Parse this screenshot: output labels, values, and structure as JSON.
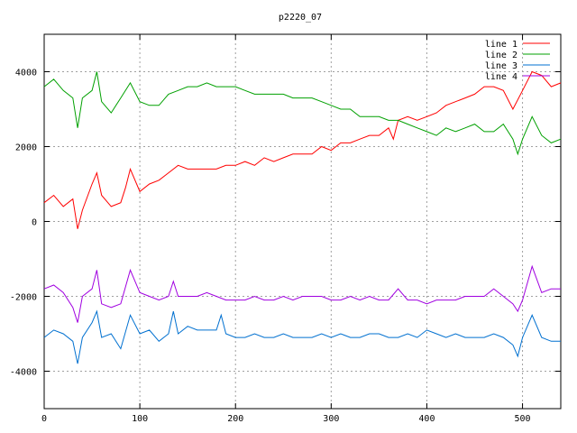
{
  "chart_data": {
    "type": "line",
    "title": "p2220_07",
    "xlabel": "",
    "ylabel": "",
    "xlim": [
      0,
      540
    ],
    "ylim": [
      -5000,
      5000
    ],
    "xticks": [
      0,
      100,
      200,
      300,
      400,
      500
    ],
    "yticks": [
      -4000,
      -2000,
      0,
      2000,
      4000
    ],
    "grid": true,
    "legend_position": "top-right",
    "series": [
      {
        "name": "line 1",
        "color": "#ff0000",
        "x": [
          0,
          10,
          20,
          30,
          35,
          40,
          50,
          55,
          60,
          70,
          80,
          85,
          90,
          100,
          110,
          120,
          130,
          140,
          150,
          160,
          170,
          180,
          190,
          200,
          210,
          220,
          230,
          240,
          250,
          260,
          270,
          280,
          290,
          300,
          310,
          320,
          330,
          340,
          350,
          360,
          365,
          370,
          380,
          390,
          400,
          410,
          420,
          430,
          440,
          450,
          460,
          470,
          480,
          490,
          500,
          510,
          520,
          530,
          540
        ],
        "y": [
          500,
          700,
          400,
          600,
          -200,
          300,
          1000,
          1300,
          700,
          400,
          500,
          900,
          1400,
          800,
          1000,
          1100,
          1300,
          1500,
          1400,
          1400,
          1400,
          1400,
          1500,
          1500,
          1600,
          1500,
          1700,
          1600,
          1700,
          1800,
          1800,
          1800,
          2000,
          1900,
          2100,
          2100,
          2200,
          2300,
          2300,
          2500,
          2200,
          2700,
          2800,
          2700,
          2800,
          2900,
          3100,
          3200,
          3300,
          3400,
          3600,
          3600,
          3500,
          3000,
          3500,
          4000,
          3900,
          3600,
          3700
        ]
      },
      {
        "name": "line 2",
        "color": "#00a000",
        "x": [
          0,
          10,
          20,
          30,
          35,
          40,
          50,
          55,
          60,
          70,
          80,
          90,
          100,
          110,
          120,
          130,
          140,
          150,
          160,
          170,
          180,
          190,
          200,
          210,
          220,
          230,
          240,
          250,
          260,
          270,
          280,
          290,
          300,
          310,
          320,
          330,
          340,
          350,
          360,
          370,
          380,
          390,
          400,
          410,
          420,
          430,
          440,
          450,
          460,
          470,
          480,
          490,
          495,
          500,
          510,
          520,
          530,
          540
        ],
        "y": [
          3600,
          3800,
          3500,
          3300,
          2500,
          3300,
          3500,
          4000,
          3200,
          2900,
          3300,
          3700,
          3200,
          3100,
          3100,
          3400,
          3500,
          3600,
          3600,
          3700,
          3600,
          3600,
          3600,
          3500,
          3400,
          3400,
          3400,
          3400,
          3300,
          3300,
          3300,
          3200,
          3100,
          3000,
          3000,
          2800,
          2800,
          2800,
          2700,
          2700,
          2600,
          2500,
          2400,
          2300,
          2500,
          2400,
          2500,
          2600,
          2400,
          2400,
          2600,
          2200,
          1800,
          2200,
          2800,
          2300,
          2100,
          2200
        ]
      },
      {
        "name": "line 3",
        "color": "#0070d0",
        "x": [
          0,
          10,
          20,
          30,
          35,
          40,
          50,
          55,
          60,
          70,
          80,
          90,
          100,
          110,
          120,
          130,
          135,
          140,
          150,
          160,
          170,
          180,
          185,
          190,
          200,
          210,
          220,
          230,
          240,
          250,
          260,
          270,
          280,
          290,
          300,
          310,
          320,
          330,
          340,
          350,
          360,
          370,
          380,
          390,
          400,
          410,
          420,
          430,
          440,
          450,
          460,
          470,
          480,
          490,
          495,
          500,
          510,
          520,
          530,
          540
        ],
        "y": [
          -3100,
          -2900,
          -3000,
          -3200,
          -3800,
          -3100,
          -2700,
          -2400,
          -3100,
          -3000,
          -3400,
          -2500,
          -3000,
          -2900,
          -3200,
          -3000,
          -2400,
          -3000,
          -2800,
          -2900,
          -2900,
          -2900,
          -2500,
          -3000,
          -3100,
          -3100,
          -3000,
          -3100,
          -3100,
          -3000,
          -3100,
          -3100,
          -3100,
          -3000,
          -3100,
          -3000,
          -3100,
          -3100,
          -3000,
          -3000,
          -3100,
          -3100,
          -3000,
          -3100,
          -2900,
          -3000,
          -3100,
          -3000,
          -3100,
          -3100,
          -3100,
          -3000,
          -3100,
          -3300,
          -3600,
          -3100,
          -2500,
          -3100,
          -3200,
          -3200
        ]
      },
      {
        "name": "line 4",
        "color": "#a000e0",
        "x": [
          0,
          10,
          20,
          30,
          35,
          40,
          50,
          55,
          60,
          70,
          80,
          90,
          100,
          110,
          120,
          130,
          135,
          140,
          150,
          160,
          170,
          180,
          190,
          200,
          210,
          220,
          230,
          240,
          250,
          260,
          270,
          280,
          290,
          300,
          310,
          320,
          330,
          340,
          350,
          360,
          370,
          380,
          390,
          400,
          410,
          420,
          430,
          440,
          450,
          460,
          470,
          480,
          490,
          495,
          500,
          510,
          520,
          530,
          540
        ],
        "y": [
          -1800,
          -1700,
          -1900,
          -2300,
          -2700,
          -2000,
          -1800,
          -1300,
          -2200,
          -2300,
          -2200,
          -1300,
          -1900,
          -2000,
          -2100,
          -2000,
          -1600,
          -2000,
          -2000,
          -2000,
          -1900,
          -2000,
          -2100,
          -2100,
          -2100,
          -2000,
          -2100,
          -2100,
          -2000,
          -2100,
          -2000,
          -2000,
          -2000,
          -2100,
          -2100,
          -2000,
          -2100,
          -2000,
          -2100,
          -2100,
          -1800,
          -2100,
          -2100,
          -2200,
          -2100,
          -2100,
          -2100,
          -2000,
          -2000,
          -2000,
          -1800,
          -2000,
          -2200,
          -2400,
          -2100,
          -1200,
          -1900,
          -1800,
          -1800
        ]
      }
    ]
  }
}
